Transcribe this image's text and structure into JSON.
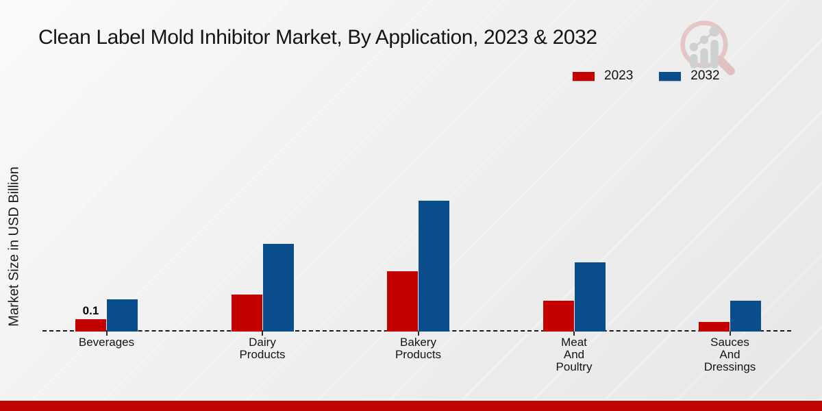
{
  "page": {
    "footer_color": "#c10505",
    "background_color": "#ececec"
  },
  "watermark": {
    "icon": "magnifier-bar-chart-logo",
    "ring_color": "#e3bcbc",
    "bars_color": "#c8c9cc"
  },
  "chart_data": {
    "type": "bar",
    "title": "Clean Label Mold Inhibitor Market, By Application, 2023 & 2032",
    "xlabel": "",
    "ylabel": "Market Size in USD Billion",
    "categories": [
      "Beverages",
      "Dairy\nProducts",
      "Bakery\nProducts",
      "Meat\nAnd\nPoultry",
      "Sauces\nAnd\nDressings"
    ],
    "series": [
      {
        "name": "2023",
        "color": "#c40101",
        "values": [
          0.1,
          0.3,
          0.49,
          0.25,
          0.08
        ]
      },
      {
        "name": "2032",
        "color": "#0a4d8c",
        "values": [
          0.26,
          0.71,
          1.06,
          0.56,
          0.25
        ]
      }
    ],
    "annotations": [
      {
        "series": "2023",
        "category_index": 0,
        "text": "0.1"
      }
    ],
    "ylim": [
      0,
      1.2
    ],
    "grid": false,
    "legend_position": "top-right",
    "baseline_style": "dashed"
  }
}
